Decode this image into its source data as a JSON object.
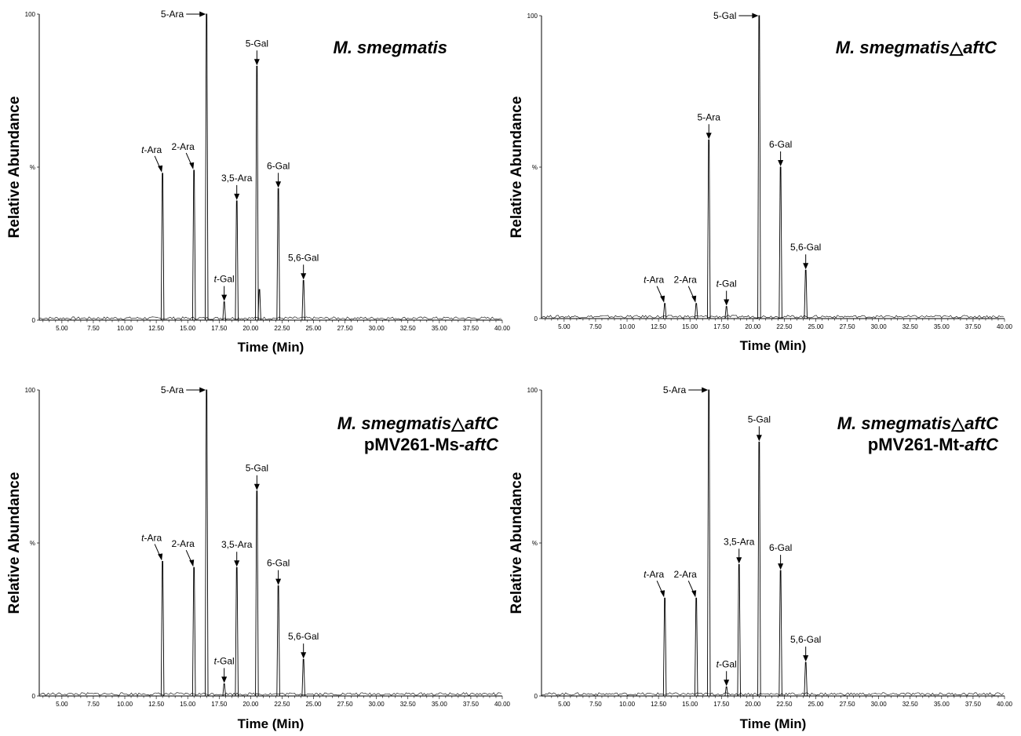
{
  "chart_data": [
    {
      "type": "line",
      "title": "M. smegmatis",
      "title_lines": [
        [
          {
            "t": "M. smegmatis",
            "i": true
          }
        ]
      ],
      "xlabel": "Time (Min)",
      "ylabel": "Relative Abundance",
      "xlim": [
        3.2,
        40.0
      ],
      "ylim": [
        0,
        100
      ],
      "xticks": [
        "5.00",
        "7.50",
        "10.00",
        "12.50",
        "15.00",
        "17.50",
        "20.00",
        "22.50",
        "25.00",
        "27.50",
        "30.00",
        "32.50",
        "35.00",
        "37.50",
        "40.00"
      ],
      "yticks": [
        "0",
        "%",
        "100"
      ],
      "peaks": [
        {
          "x": 13.0,
          "y": 48
        },
        {
          "x": 15.5,
          "y": 49
        },
        {
          "x": 16.5,
          "y": 100
        },
        {
          "x": 17.9,
          "y": 6
        },
        {
          "x": 18.9,
          "y": 39
        },
        {
          "x": 20.5,
          "y": 83
        },
        {
          "x": 20.7,
          "y": 10
        },
        {
          "x": 22.2,
          "y": 43
        },
        {
          "x": 24.2,
          "y": 13
        }
      ],
      "annotations": [
        {
          "parts": [
            {
              "t": "t",
              "i": true
            },
            {
              "t": "-Ara"
            }
          ],
          "x": 13.0,
          "y": 48,
          "dir": "diag-left"
        },
        {
          "parts": [
            {
              "t": "2-Ara"
            }
          ],
          "x": 15.5,
          "y": 49,
          "dir": "diag-left"
        },
        {
          "parts": [
            {
              "t": "5-Ara"
            }
          ],
          "x": 16.5,
          "y": 100,
          "dir": "right"
        },
        {
          "parts": [
            {
              "t": "t",
              "i": true
            },
            {
              "t": "-Gal"
            }
          ],
          "x": 17.9,
          "y": 6,
          "dir": "down"
        },
        {
          "parts": [
            {
              "t": "3,5-Ara"
            }
          ],
          "x": 18.9,
          "y": 39,
          "dir": "down"
        },
        {
          "parts": [
            {
              "t": "5-Gal"
            }
          ],
          "x": 20.5,
          "y": 83,
          "dir": "down"
        },
        {
          "parts": [
            {
              "t": "6-Gal"
            }
          ],
          "x": 22.2,
          "y": 43,
          "dir": "down"
        },
        {
          "parts": [
            {
              "t": "5,6-Gal"
            }
          ],
          "x": 24.2,
          "y": 13,
          "dir": "down"
        }
      ]
    },
    {
      "type": "line",
      "title": "M. smegmatis△aftC",
      "title_lines": [
        [
          {
            "t": "M. smegmatis",
            "i": true
          },
          {
            "t": "△"
          },
          {
            "t": "aftC",
            "i": true
          }
        ]
      ],
      "xlabel": "Time (Min)",
      "ylabel": "Relative Abundance",
      "xlim": [
        3.2,
        40.0
      ],
      "ylim": [
        0,
        100
      ],
      "xticks": [
        "5.00",
        "7.50",
        "10.00",
        "12.50",
        "15.00",
        "17.50",
        "20.00",
        "22.50",
        "25.00",
        "27.50",
        "30.00",
        "32.50",
        "35.00",
        "37.50",
        "40.00"
      ],
      "yticks": [
        "0",
        "%",
        "100"
      ],
      "peaks": [
        {
          "x": 13.0,
          "y": 5
        },
        {
          "x": 15.5,
          "y": 5
        },
        {
          "x": 16.5,
          "y": 59
        },
        {
          "x": 17.9,
          "y": 4
        },
        {
          "x": 20.5,
          "y": 100
        },
        {
          "x": 22.2,
          "y": 50
        },
        {
          "x": 24.2,
          "y": 16
        }
      ],
      "annotations": [
        {
          "parts": [
            {
              "t": "t",
              "i": true
            },
            {
              "t": "-Ara"
            }
          ],
          "x": 13.0,
          "y": 5,
          "dir": "diag-left"
        },
        {
          "parts": [
            {
              "t": "2-Ara"
            }
          ],
          "x": 15.5,
          "y": 5,
          "dir": "diag-left"
        },
        {
          "parts": [
            {
              "t": "5-Ara"
            }
          ],
          "x": 16.5,
          "y": 59,
          "dir": "down"
        },
        {
          "parts": [
            {
              "t": "t",
              "i": true
            },
            {
              "t": "-Gal"
            }
          ],
          "x": 17.9,
          "y": 4,
          "dir": "down"
        },
        {
          "parts": [
            {
              "t": "5-Gal"
            }
          ],
          "x": 20.5,
          "y": 100,
          "dir": "right"
        },
        {
          "parts": [
            {
              "t": "6-Gal"
            }
          ],
          "x": 22.2,
          "y": 50,
          "dir": "down"
        },
        {
          "parts": [
            {
              "t": "5,6-Gal"
            }
          ],
          "x": 24.2,
          "y": 16,
          "dir": "down"
        }
      ]
    },
    {
      "type": "line",
      "title": "M. smegmatis△aftC pMV261-Ms-aftC",
      "title_lines": [
        [
          {
            "t": "M. smegmatis",
            "i": true
          },
          {
            "t": "△"
          },
          {
            "t": "aftC",
            "i": true
          }
        ],
        [
          {
            "t": "pMV261-Ms-"
          },
          {
            "t": "aftC",
            "i": true
          }
        ]
      ],
      "xlabel": "Time (Min)",
      "ylabel": "Relative Abundance",
      "xlim": [
        3.2,
        40.0
      ],
      "ylim": [
        0,
        100
      ],
      "xticks": [
        "5.00",
        "7.50",
        "10.00",
        "12.50",
        "15.00",
        "17.50",
        "20.00",
        "22.50",
        "25.00",
        "27.50",
        "30.00",
        "32.50",
        "35.00",
        "37.50",
        "40.00"
      ],
      "yticks": [
        "0",
        "%",
        "100"
      ],
      "peaks": [
        {
          "x": 13.0,
          "y": 44
        },
        {
          "x": 15.5,
          "y": 42
        },
        {
          "x": 16.5,
          "y": 100
        },
        {
          "x": 17.9,
          "y": 4
        },
        {
          "x": 18.9,
          "y": 42
        },
        {
          "x": 20.5,
          "y": 67
        },
        {
          "x": 22.2,
          "y": 36
        },
        {
          "x": 24.2,
          "y": 12
        }
      ],
      "annotations": [
        {
          "parts": [
            {
              "t": "t",
              "i": true
            },
            {
              "t": "-Ara"
            }
          ],
          "x": 13.0,
          "y": 44,
          "dir": "diag-left"
        },
        {
          "parts": [
            {
              "t": "2-Ara"
            }
          ],
          "x": 15.5,
          "y": 42,
          "dir": "diag-left"
        },
        {
          "parts": [
            {
              "t": "5-Ara"
            }
          ],
          "x": 16.5,
          "y": 100,
          "dir": "right"
        },
        {
          "parts": [
            {
              "t": "t",
              "i": true
            },
            {
              "t": "-Gal"
            }
          ],
          "x": 17.9,
          "y": 4,
          "dir": "down"
        },
        {
          "parts": [
            {
              "t": "3,5-Ara"
            }
          ],
          "x": 18.9,
          "y": 42,
          "dir": "down"
        },
        {
          "parts": [
            {
              "t": "5-Gal"
            }
          ],
          "x": 20.5,
          "y": 67,
          "dir": "down"
        },
        {
          "parts": [
            {
              "t": "6-Gal"
            }
          ],
          "x": 22.2,
          "y": 36,
          "dir": "down"
        },
        {
          "parts": [
            {
              "t": "5,6-Gal"
            }
          ],
          "x": 24.2,
          "y": 12,
          "dir": "down"
        }
      ]
    },
    {
      "type": "line",
      "title": "M. smegmatis△aftC pMV261-Mt-aftC",
      "title_lines": [
        [
          {
            "t": "M. smegmatis",
            "i": true
          },
          {
            "t": "△"
          },
          {
            "t": "aftC",
            "i": true
          }
        ],
        [
          {
            "t": "pMV261-Mt-"
          },
          {
            "t": "aftC",
            "i": true
          }
        ]
      ],
      "xlabel": "Time (Min)",
      "ylabel": "Relative Abundance",
      "xlim": [
        3.2,
        40.0
      ],
      "ylim": [
        0,
        100
      ],
      "xticks": [
        "5.00",
        "7.50",
        "10.00",
        "12.50",
        "15.00",
        "17.50",
        "20.00",
        "22.50",
        "25.00",
        "27.50",
        "30.00",
        "32.50",
        "35.00",
        "37.50",
        "40.00"
      ],
      "yticks": [
        "0",
        "%",
        "100"
      ],
      "peaks": [
        {
          "x": 13.0,
          "y": 32
        },
        {
          "x": 15.5,
          "y": 32
        },
        {
          "x": 16.5,
          "y": 100
        },
        {
          "x": 17.9,
          "y": 3
        },
        {
          "x": 18.9,
          "y": 43
        },
        {
          "x": 20.5,
          "y": 83
        },
        {
          "x": 22.2,
          "y": 41
        },
        {
          "x": 24.2,
          "y": 11
        }
      ],
      "annotations": [
        {
          "parts": [
            {
              "t": "t",
              "i": true
            },
            {
              "t": "-Ara"
            }
          ],
          "x": 13.0,
          "y": 32,
          "dir": "diag-left"
        },
        {
          "parts": [
            {
              "t": "2-Ara"
            }
          ],
          "x": 15.5,
          "y": 32,
          "dir": "diag-left"
        },
        {
          "parts": [
            {
              "t": "5-Ara"
            }
          ],
          "x": 16.5,
          "y": 100,
          "dir": "right"
        },
        {
          "parts": [
            {
              "t": "t",
              "i": true
            },
            {
              "t": "-Gal"
            }
          ],
          "x": 17.9,
          "y": 3,
          "dir": "down"
        },
        {
          "parts": [
            {
              "t": "3,5-Ara"
            }
          ],
          "x": 18.9,
          "y": 43,
          "dir": "down"
        },
        {
          "parts": [
            {
              "t": "5-Gal"
            }
          ],
          "x": 20.5,
          "y": 83,
          "dir": "down"
        },
        {
          "parts": [
            {
              "t": "6-Gal"
            }
          ],
          "x": 22.2,
          "y": 41,
          "dir": "down"
        },
        {
          "parts": [
            {
              "t": "5,6-Gal"
            }
          ],
          "x": 24.2,
          "y": 11,
          "dir": "down"
        }
      ]
    }
  ]
}
